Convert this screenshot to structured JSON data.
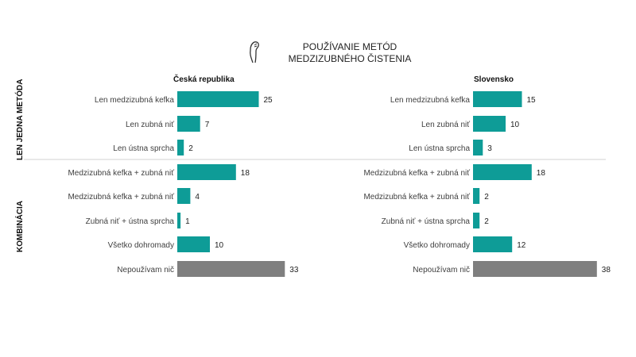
{
  "title": {
    "line1": "POUŽÍVANIE METÓD",
    "line2": "MEDZIZUBNÉHO ČISTENIA"
  },
  "icon": "interdental-brush-icon",
  "group_labels": {
    "single": "LEN JEDNA METÓDA",
    "combo": "KOMBINÁCIA"
  },
  "colors": {
    "bar": "#0e9c97",
    "bar_none": "#7f7f7f",
    "separator": "#d0d0d0"
  },
  "chart_data": [
    {
      "type": "bar",
      "orientation": "horizontal",
      "title": "Česká republika",
      "categories": [
        "Len medzizubná kefka",
        "Len zubná niť",
        "Len ústna sprcha",
        "Medzizubná kefka + zubná niť",
        "Medzizubná kefka + zubná niť",
        "Zubná niť + ústna sprcha",
        "Všetko dohromady",
        "Nepoužívam nič"
      ],
      "values": [
        25,
        7,
        2,
        18,
        4,
        1,
        10,
        33
      ],
      "highlight_last": true
    },
    {
      "type": "bar",
      "orientation": "horizontal",
      "title": "Slovensko",
      "categories": [
        "Len medzizubná kefka",
        "Len zubná niť",
        "Len ústna sprcha",
        "Medzizubná kefka + zubná niť",
        "Medzizubná kefka + zubná niť",
        "Zubná niť + ústna sprcha",
        "Všetko dohromady",
        "Nepoužívam nič"
      ],
      "values": [
        15,
        10,
        3,
        18,
        2,
        2,
        12,
        38
      ],
      "highlight_last": true
    }
  ]
}
